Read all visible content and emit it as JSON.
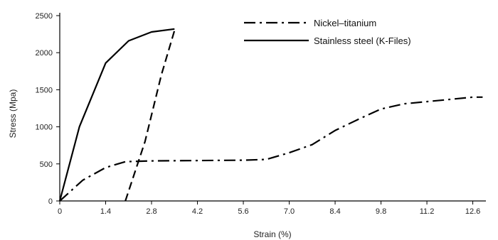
{
  "chart_data": {
    "type": "line",
    "title": "",
    "xlabel": "Strain (%)",
    "ylabel": "Stress (Mpa)",
    "xlim": [
      0,
      13.0
    ],
    "ylim": [
      0,
      2500
    ],
    "x_ticks": [
      0,
      1.4,
      2.8,
      4.2,
      5.6,
      7.0,
      8.4,
      9.8,
      11.2,
      12.6
    ],
    "x_tick_labels": [
      "0",
      "1.4",
      "2.8",
      "4.2",
      "5.6",
      "7.0",
      "8.4",
      "9.8",
      "11.2",
      "12.6"
    ],
    "y_ticks": [
      0,
      500,
      1000,
      1500,
      2000,
      2500
    ],
    "y_tick_labels": [
      "0",
      "500",
      "1000",
      "1500",
      "2000",
      "2500"
    ],
    "grid": false,
    "legend_position": "top-right",
    "series": [
      {
        "name": "Nickel–titanium",
        "style": "dashdot",
        "color": "#000000",
        "x": [
          0.0,
          0.7,
          1.4,
          2.0,
          2.8,
          4.2,
          5.6,
          6.3,
          7.0,
          7.7,
          8.4,
          9.1,
          9.8,
          10.5,
          11.2,
          11.9,
          12.6,
          12.9
        ],
        "y": [
          0,
          280,
          450,
          530,
          540,
          545,
          550,
          560,
          650,
          760,
          950,
          1100,
          1240,
          1310,
          1340,
          1370,
          1400,
          1400
        ]
      },
      {
        "name": "Stainless steel (K-Files)",
        "style": "solid",
        "color": "#000000",
        "x": [
          0.0,
          0.6,
          1.4,
          2.1,
          2.8,
          3.5
        ],
        "y": [
          0,
          1000,
          1860,
          2160,
          2280,
          2320
        ]
      },
      {
        "name": "",
        "style": "dashed",
        "color": "#000000",
        "x": [
          2.0,
          2.6,
          3.1,
          3.5
        ],
        "y": [
          0,
          800,
          1700,
          2300
        ]
      }
    ]
  }
}
